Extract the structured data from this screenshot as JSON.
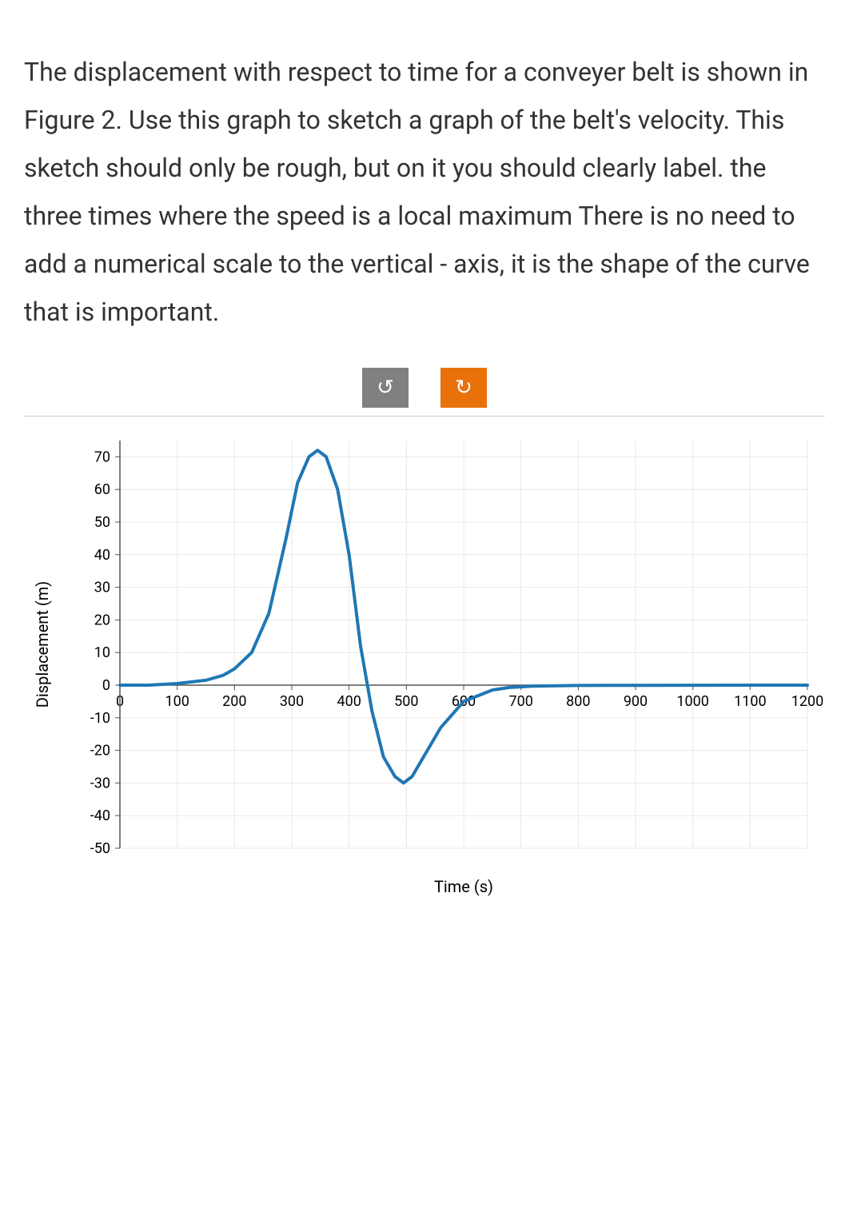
{
  "question": {
    "text": "The displacement with respect to time for a conveyer belt is shown in Figure 2.  Use this graph to sketch a graph of the belt's velocity. This sketch should only be rough, but on it you should clearly label. the three times where the speed is a local maximum There is no need to add a numerical scale to the vertical - axis, it is the shape of the curve that is important."
  },
  "actions": {
    "undo_glyph": "↺",
    "redo_glyph": "↻",
    "undo_bg": "#808080",
    "redo_bg": "#e8710a"
  },
  "chart": {
    "type": "line",
    "title": "",
    "xlabel": "Time (s)",
    "ylabel": "Displacement (m)",
    "xlim": [
      0,
      1200
    ],
    "ylim": [
      -50,
      75
    ],
    "xtick_step": 100,
    "ytick_step": 10,
    "ytick_min": -50,
    "ytick_max": 70,
    "background_color": "#ffffff",
    "grid_color": "#e8e8e8",
    "axis_color": "#555555",
    "line_color": "#1f77b4",
    "line_width": 4,
    "tick_font_size": 18,
    "label_font_size": 20,
    "series": {
      "x": [
        0,
        50,
        100,
        150,
        180,
        200,
        230,
        260,
        290,
        310,
        330,
        345,
        360,
        380,
        400,
        420,
        440,
        460,
        480,
        495,
        510,
        530,
        560,
        600,
        650,
        680,
        720,
        800,
        900,
        1000,
        1100,
        1200
      ],
      "y": [
        0,
        0,
        0.5,
        1.5,
        3,
        5,
        10,
        22,
        45,
        62,
        70,
        72,
        70,
        60,
        40,
        12,
        -8,
        -22,
        -28,
        -30,
        -28,
        -22,
        -13,
        -5,
        -1.5,
        -0.7,
        -0.3,
        -0.1,
        -0.05,
        -0.02,
        -0.01,
        0
      ]
    }
  }
}
